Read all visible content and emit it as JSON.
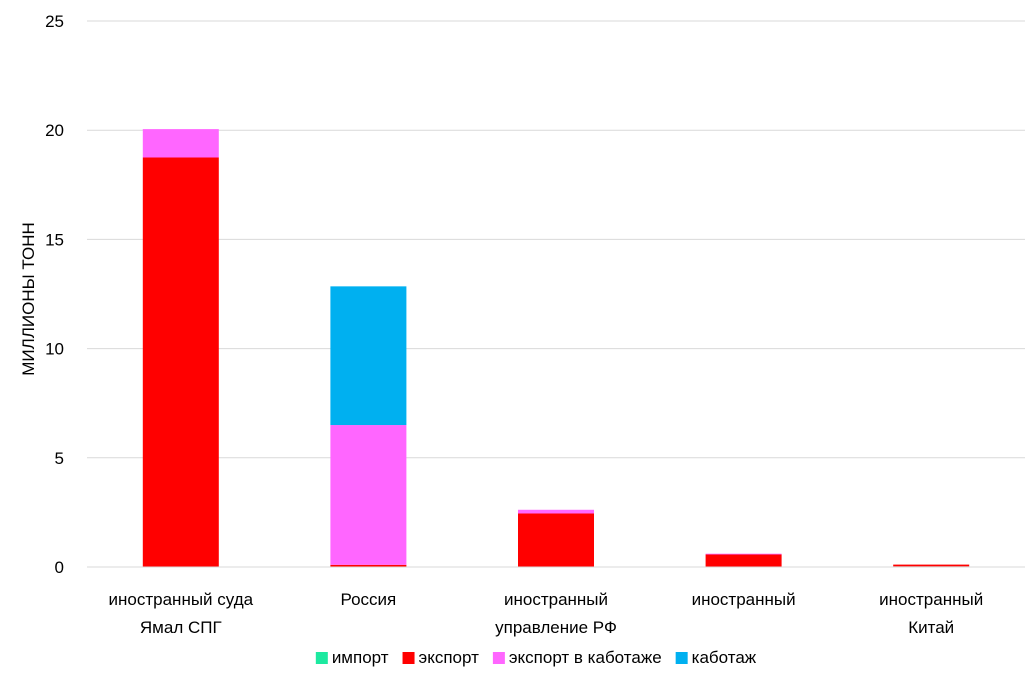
{
  "chart_data": {
    "type": "bar",
    "stacked": true,
    "categories": [
      [
        "иностранный суда",
        "Ямал СПГ"
      ],
      [
        "Россия"
      ],
      [
        "иностранный",
        "управление РФ"
      ],
      [
        "иностранный"
      ],
      [
        "иностранный",
        "Китай"
      ]
    ],
    "series": [
      {
        "name": "импорт",
        "color": "#1de9a0",
        "values": [
          0,
          0,
          0,
          0,
          0.03
        ]
      },
      {
        "name": "экспорт",
        "color": "#ff0000",
        "values": [
          18.75,
          0.1,
          2.45,
          0.58,
          0.08
        ]
      },
      {
        "name": "экспорт в каботаже",
        "color": "#ff66ff",
        "values": [
          1.3,
          6.4,
          0.17,
          0.03,
          0
        ]
      },
      {
        "name": "каботаж",
        "color": "#00b0f0",
        "values": [
          0,
          6.35,
          0,
          0,
          0
        ]
      }
    ],
    "ylabel": "МИЛЛИОНЫ ТОНН",
    "ylim": [
      0,
      25
    ],
    "yticks": [
      0,
      5,
      10,
      15,
      20,
      25
    ],
    "grid": true,
    "legend": "bottom"
  }
}
